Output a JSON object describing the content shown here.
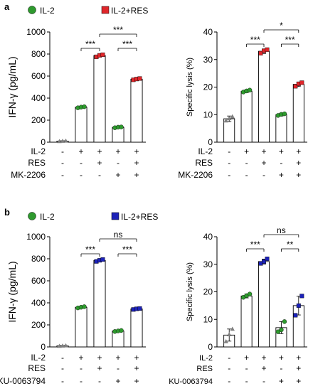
{
  "panels": [
    {
      "letter": "a",
      "legend": [
        {
          "label": "IL-2",
          "color": "#2e9a2e",
          "marker": "circle"
        },
        {
          "label": "IL-2+RES",
          "color": "#e0262a",
          "marker": "square"
        }
      ],
      "condition_rows": [
        {
          "label": "IL-2",
          "signs": [
            "-",
            "+",
            "+",
            "+",
            "+"
          ]
        },
        {
          "label": "RES",
          "signs": [
            "-",
            "-",
            "+",
            "-",
            "+"
          ]
        },
        {
          "label": "MK-2206",
          "signs": [
            "-",
            "-",
            "-",
            "+",
            "+"
          ]
        }
      ]
    },
    {
      "letter": "b",
      "legend": [
        {
          "label": "IL-2",
          "color": "#2e9a2e",
          "marker": "circle"
        },
        {
          "label": "IL-2+RES",
          "color": "#1c22b8",
          "marker": "square"
        }
      ],
      "condition_rows": [
        {
          "label": "IL-2",
          "signs": [
            "-",
            "+",
            "+",
            "+",
            "+"
          ]
        },
        {
          "label": "RES",
          "signs": [
            "-",
            "-",
            "+",
            "-",
            "+"
          ]
        },
        {
          "label": "KU-0063794",
          "signs": [
            "-",
            "-",
            "-",
            "+",
            "+"
          ]
        }
      ]
    }
  ],
  "chart_data": [
    {
      "type": "bar",
      "panel": "a",
      "ylabel": "IFN-γ (pg/mL)",
      "ylim": [
        0,
        1000
      ],
      "yticks": [
        0,
        200,
        400,
        600,
        800,
        1000
      ],
      "values": [
        10,
        318,
        786,
        135,
        572
      ],
      "errors": [
        3,
        6,
        12,
        4,
        8
      ],
      "markers": [
        "triangle",
        "circle",
        "square",
        "circle",
        "square"
      ],
      "colors": [
        "#808080",
        "#2e9a2e",
        "#e0262a",
        "#2e9a2e",
        "#e0262a"
      ],
      "points": [
        [
          8,
          10,
          12
        ],
        [
          312,
          318,
          322
        ],
        [
          775,
          788,
          794
        ],
        [
          131,
          136,
          138
        ],
        [
          566,
          573,
          578
        ]
      ],
      "comparisons": [
        {
          "from": 2,
          "to": 4,
          "label": "***"
        },
        {
          "from": 1,
          "to": 2,
          "label": "***"
        },
        {
          "from": 3,
          "to": 4,
          "label": "***"
        }
      ],
      "grid": false
    },
    {
      "type": "bar",
      "panel": "a",
      "ylabel": "Specific lysis (%)",
      "ylim": [
        0,
        40
      ],
      "yticks": [
        0,
        10,
        20,
        30,
        40
      ],
      "values": [
        8.5,
        18.5,
        33,
        10,
        21
      ],
      "errors": [
        1,
        0.5,
        0.8,
        0.5,
        0.8
      ],
      "markers": [
        "triangle",
        "circle",
        "square",
        "circle",
        "square"
      ],
      "colors": [
        "#808080",
        "#2e9a2e",
        "#e0262a",
        "#2e9a2e",
        "#e0262a"
      ],
      "points": [
        [
          7.8,
          8.6,
          9.3
        ],
        [
          18.2,
          18.6,
          18.9
        ],
        [
          32.3,
          33.2,
          33.6
        ],
        [
          9.7,
          10.1,
          10.3
        ],
        [
          20.3,
          21.2,
          21.6
        ]
      ],
      "comparisons": [
        {
          "from": 2,
          "to": 4,
          "label": "*"
        },
        {
          "from": 1,
          "to": 2,
          "label": "***"
        },
        {
          "from": 3,
          "to": 4,
          "label": "***"
        }
      ],
      "grid": false
    },
    {
      "type": "bar",
      "panel": "b",
      "ylabel": "IFN-γ (pg/mL)",
      "ylim": [
        0,
        1000
      ],
      "yticks": [
        0,
        200,
        400,
        600,
        800,
        1000
      ],
      "values": [
        10,
        360,
        785,
        145,
        345
      ],
      "errors": [
        3,
        6,
        10,
        5,
        6
      ],
      "markers": [
        "triangle",
        "circle",
        "square",
        "circle",
        "square"
      ],
      "colors": [
        "#808080",
        "#2e9a2e",
        "#1c22b8",
        "#2e9a2e",
        "#1c22b8"
      ],
      "points": [
        [
          8,
          10,
          12
        ],
        [
          354,
          360,
          365
        ],
        [
          776,
          786,
          793
        ],
        [
          140,
          145,
          149
        ],
        [
          340,
          346,
          349
        ]
      ],
      "comparisons": [
        {
          "from": 2,
          "to": 4,
          "label": "ns"
        },
        {
          "from": 1,
          "to": 2,
          "label": "***"
        },
        {
          "from": 3,
          "to": 4,
          "label": "***"
        }
      ],
      "grid": false
    },
    {
      "type": "bar",
      "panel": "b",
      "ylabel": "Specific lysis (%)",
      "ylim": [
        0,
        40
      ],
      "yticks": [
        0,
        10,
        20,
        30,
        40
      ],
      "values": [
        4.3,
        18.5,
        31,
        7,
        15
      ],
      "errors": [
        2.2,
        0.7,
        0.9,
        2.2,
        3.4
      ],
      "markers": [
        "triangle",
        "circle",
        "square",
        "circle",
        "square"
      ],
      "colors": [
        "#808080",
        "#2e9a2e",
        "#1c22b8",
        "#2e9a2e",
        "#1c22b8"
      ],
      "points": [
        [
          2,
          4.5,
          6.5
        ],
        [
          18,
          18.6,
          19.2
        ],
        [
          30.3,
          31,
          32
        ],
        [
          5.5,
          6.2,
          9.2
        ],
        [
          11.5,
          15,
          18.5
        ]
      ],
      "comparisons": [
        {
          "from": 2,
          "to": 4,
          "label": "ns"
        },
        {
          "from": 1,
          "to": 2,
          "label": "***"
        },
        {
          "from": 3,
          "to": 4,
          "label": "**"
        }
      ],
      "grid": false
    }
  ]
}
